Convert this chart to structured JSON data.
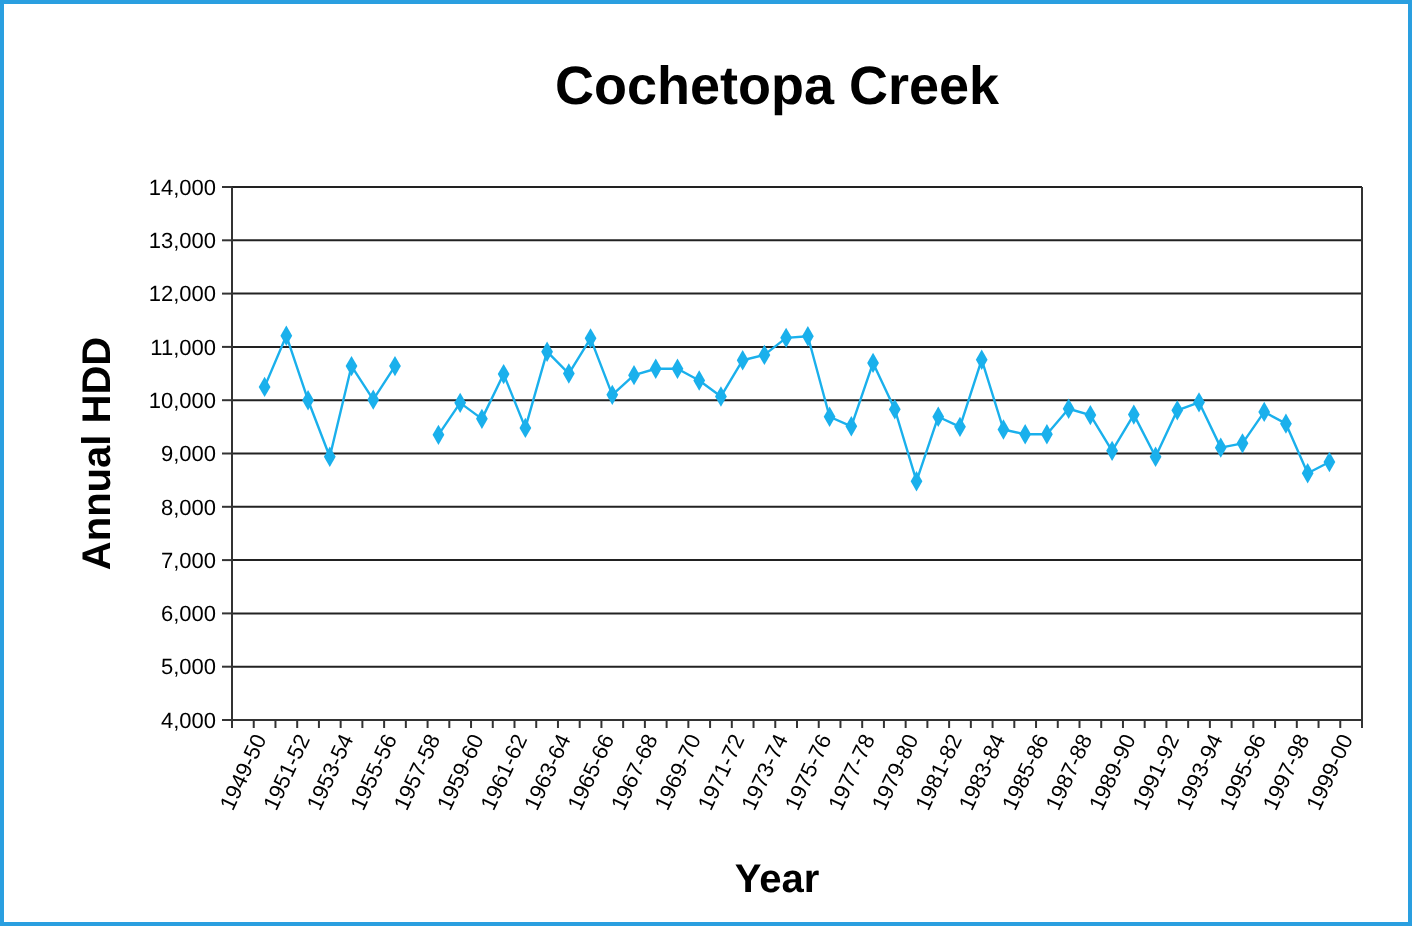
{
  "chart_data": {
    "type": "line",
    "title": "Cochetopa Creek",
    "xlabel": "Year",
    "ylabel": "Annual HDD",
    "categories": [
      "1949-50",
      null,
      "1951-52",
      null,
      "1953-54",
      null,
      "1955-56",
      null,
      "1957-58",
      null,
      "1959-60",
      null,
      "1961-62",
      null,
      "1963-64",
      null,
      "1965-66",
      null,
      "1967-68",
      null,
      "1969-70",
      null,
      "1971-72",
      null,
      "1973-74",
      null,
      "1975-76",
      null,
      "1977-78",
      null,
      "1979-80",
      null,
      "1981-82",
      null,
      "1983-84",
      null,
      "1985-86",
      null,
      "1987-88",
      null,
      "1989-90",
      null,
      "1991-92",
      null,
      "1993-94",
      null,
      "1995-96",
      null,
      "1997-98",
      null,
      "1999-00",
      null
    ],
    "values": [
      null,
      10250,
      11210,
      10000,
      8940,
      10640,
      10010,
      10640,
      null,
      9350,
      9950,
      9650,
      10490,
      9480,
      10910,
      10500,
      11160,
      10100,
      10470,
      10590,
      10590,
      10370,
      10070,
      10750,
      10850,
      11170,
      11200,
      9690,
      9510,
      10700,
      9830,
      8480,
      9690,
      9500,
      10760,
      9450,
      9360,
      9360,
      9840,
      9720,
      9050,
      9730,
      8940,
      9810,
      9960,
      9110,
      9190,
      9780,
      9560,
      8630,
      8840,
      null
    ],
    "color": "#1ab0ec",
    "marker": "diamond",
    "line_style": "solid",
    "grid": "y",
    "ylim": [
      4000,
      14000
    ],
    "yticks": [
      {
        "value": 4000,
        "label": "4,000"
      },
      {
        "value": 5000,
        "label": "5,000"
      },
      {
        "value": 6000,
        "label": "6,000"
      },
      {
        "value": 7000,
        "label": "7,000"
      },
      {
        "value": 8000,
        "label": "8,000"
      },
      {
        "value": 9000,
        "label": "9,000"
      },
      {
        "value": 10000,
        "label": "10,000"
      },
      {
        "value": 11000,
        "label": "11,000"
      },
      {
        "value": 12000,
        "label": "12,000"
      },
      {
        "value": 13000,
        "label": "13,000"
      },
      {
        "value": 14000,
        "label": "14,000"
      }
    ]
  }
}
